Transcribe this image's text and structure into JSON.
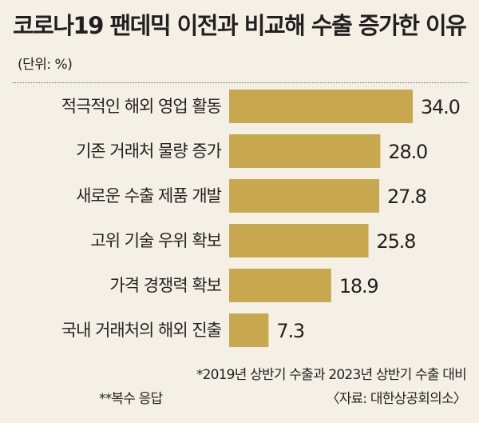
{
  "header": {
    "title": "코로나19 팬데믹 이전과 비교해 수출 증가한 이유",
    "unit": "(단위: %)"
  },
  "chart_data": {
    "type": "bar",
    "orientation": "horizontal",
    "title": "코로나19 팬데믹 이전과 비교해 수출 증가한 이유",
    "unit": "%",
    "categories": [
      "적극적인 해외 영업 활동",
      "기존 거래처 물량 증가",
      "새로운 수출 제품 개발",
      "고위 기술 우위 확보",
      "가격 경쟁력 확보",
      "국내 거래처의 해외 진출"
    ],
    "values": [
      34.0,
      28.0,
      27.8,
      25.8,
      18.9,
      7.3
    ],
    "value_labels": [
      "34.0",
      "28.0",
      "27.8",
      "25.8",
      "18.9",
      "7.3"
    ],
    "xlim": [
      0,
      34
    ],
    "grid": false,
    "legend": "none",
    "bar_color": "#c8a84f"
  },
  "notes": {
    "footnote1": "*2019년 상반기 수출과 2023년 상반기 수출 대비",
    "footnote2": "**복수 응답",
    "source": "〈자료: 대한상공회의소〉"
  },
  "colors": {
    "background": "#f4f0e5",
    "bar": "#c8a84f",
    "text": "#231f20"
  }
}
